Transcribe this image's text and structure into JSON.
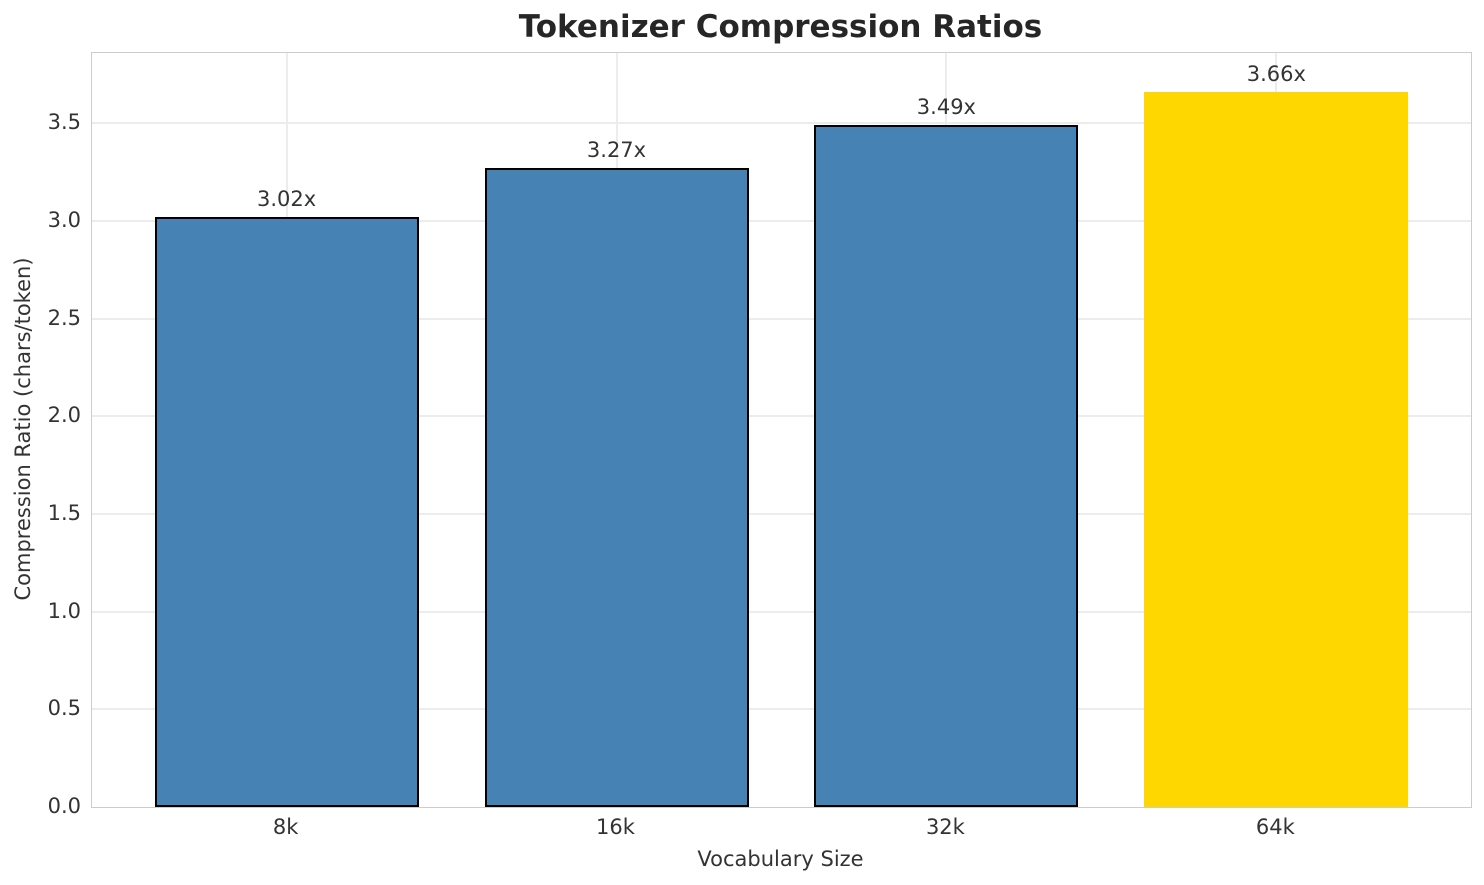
{
  "chart_data": {
    "type": "bar",
    "title": "Tokenizer Compression Ratios",
    "xlabel": "Vocabulary Size",
    "ylabel": "Compression Ratio (chars/token)",
    "categories": [
      "8k",
      "16k",
      "32k",
      "64k"
    ],
    "values": [
      3.02,
      3.27,
      3.49,
      3.66
    ],
    "bar_value_labels": [
      "3.02x",
      "3.27x",
      "3.49x",
      "3.66x"
    ],
    "bar_colors": [
      "#4682b4",
      "#4682b4",
      "#4682b4",
      "#ffd700"
    ],
    "bar_edge_colors": [
      "#000000",
      "#000000",
      "#000000",
      "none"
    ],
    "y_ticks": [
      0.0,
      0.5,
      1.0,
      1.5,
      2.0,
      2.5,
      3.0,
      3.5
    ],
    "y_tick_labels": [
      "0.0",
      "0.5",
      "1.0",
      "1.5",
      "2.0",
      "2.5",
      "3.0",
      "3.5"
    ],
    "ylim": [
      0,
      3.86
    ],
    "grid": true,
    "legend": "none",
    "accent_blue": "#4682b4",
    "highlight_gold": "#ffd700",
    "grid_color": "#ececec",
    "spine_color": "#cccccc",
    "text_color": "#333333",
    "title_color": "#262626"
  }
}
